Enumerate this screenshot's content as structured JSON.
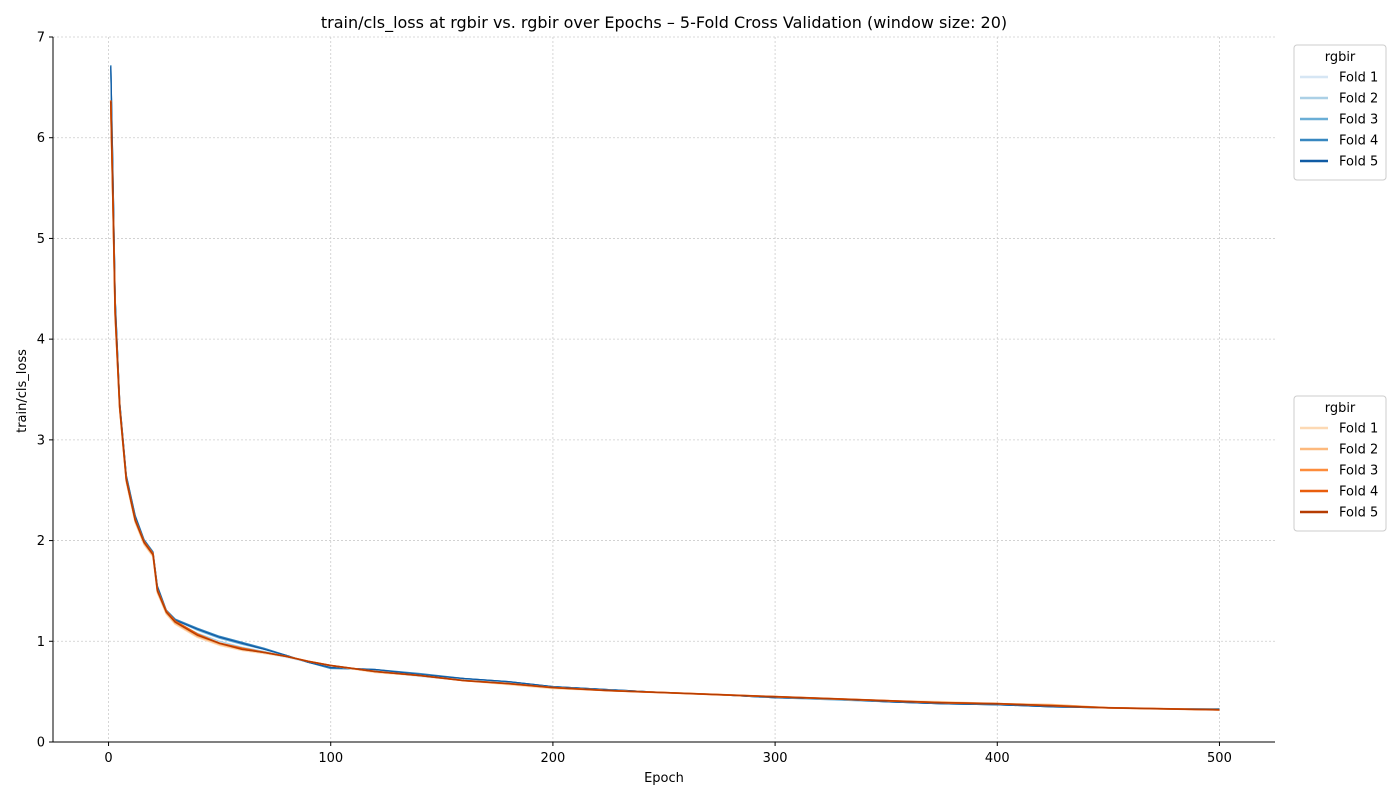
{
  "chart_data": {
    "type": "line",
    "title": "train/cls_loss at rgbir vs. rgbir over Epochs – 5-Fold Cross Validation (window size: 20)",
    "xlabel": "Epoch",
    "ylabel": "train/cls_loss",
    "xlim": [
      -25,
      525
    ],
    "ylim": [
      0,
      7
    ],
    "xticks": [
      0,
      100,
      200,
      300,
      400,
      500
    ],
    "yticks": [
      0,
      1,
      2,
      3,
      4,
      5,
      6,
      7
    ],
    "grid": true,
    "legend_groups": [
      {
        "title": "rgbir",
        "placement": "upper-right, outside",
        "entries": [
          {
            "name": "Fold 1",
            "color": "#d6e6f4"
          },
          {
            "name": "Fold 2",
            "color": "#abd0e6"
          },
          {
            "name": "Fold 3",
            "color": "#6aaed6"
          },
          {
            "name": "Fold 4",
            "color": "#3787c0"
          },
          {
            "name": "Fold 5",
            "color": "#105ba4"
          }
        ]
      },
      {
        "title": "rgbir",
        "placement": "center-right, outside",
        "entries": [
          {
            "name": "Fold 1",
            "color": "#fdd9b4"
          },
          {
            "name": "Fold 2",
            "color": "#fdb97d"
          },
          {
            "name": "Fold 3",
            "color": "#fd8c3b"
          },
          {
            "name": "Fold 4",
            "color": "#e95e0d"
          },
          {
            "name": "Fold 5",
            "color": "#b63c02"
          }
        ]
      }
    ],
    "series": [
      {
        "name": "Fold 1",
        "color": "#d6e6f4",
        "width": 1.3,
        "x": [
          1,
          2,
          3,
          5,
          8,
          12,
          16,
          20,
          22,
          26,
          30,
          40,
          50,
          60,
          70,
          80,
          90,
          100,
          120,
          140,
          160,
          180,
          200,
          225,
          250,
          275,
          300,
          325,
          350,
          375,
          400,
          425,
          450,
          475,
          500
        ],
        "y": [
          6.65,
          5.55,
          4.35,
          3.35,
          2.62,
          2.22,
          1.98,
          1.86,
          1.52,
          1.28,
          1.18,
          1.06,
          0.97,
          0.92,
          0.88,
          0.84,
          0.79,
          0.75,
          0.7,
          0.65,
          0.61,
          0.58,
          0.54,
          0.51,
          0.49,
          0.47,
          0.44,
          0.42,
          0.4,
          0.39,
          0.37,
          0.36,
          0.34,
          0.33,
          0.32
        ]
      },
      {
        "name": "Fold 2",
        "color": "#abd0e6",
        "width": 1.3,
        "x": [
          1,
          2,
          3,
          5,
          8,
          12,
          16,
          20,
          22,
          26,
          30,
          40,
          50,
          60,
          70,
          80,
          90,
          100,
          120,
          140,
          160,
          180,
          200,
          225,
          250,
          275,
          300,
          325,
          350,
          375,
          400,
          425,
          450,
          475,
          500
        ],
        "y": [
          6.68,
          5.57,
          4.37,
          3.36,
          2.63,
          2.23,
          1.99,
          1.87,
          1.53,
          1.29,
          1.19,
          1.08,
          1.0,
          0.94,
          0.9,
          0.85,
          0.79,
          0.74,
          0.71,
          0.66,
          0.62,
          0.59,
          0.55,
          0.52,
          0.49,
          0.47,
          0.45,
          0.43,
          0.4,
          0.39,
          0.37,
          0.36,
          0.34,
          0.33,
          0.32
        ]
      },
      {
        "name": "Fold 3",
        "color": "#6aaed6",
        "width": 1.3,
        "x": [
          1,
          2,
          3,
          5,
          8,
          12,
          16,
          20,
          22,
          26,
          30,
          40,
          50,
          60,
          70,
          80,
          90,
          100,
          120,
          140,
          160,
          180,
          200,
          225,
          250,
          275,
          300,
          325,
          350,
          375,
          400,
          425,
          450,
          475,
          500
        ],
        "y": [
          6.7,
          5.6,
          4.38,
          3.37,
          2.64,
          2.24,
          2.0,
          1.88,
          1.54,
          1.3,
          1.21,
          1.11,
          1.03,
          0.97,
          0.92,
          0.86,
          0.79,
          0.74,
          0.72,
          0.67,
          0.63,
          0.6,
          0.55,
          0.52,
          0.49,
          0.47,
          0.44,
          0.42,
          0.4,
          0.38,
          0.37,
          0.35,
          0.34,
          0.33,
          0.32
        ]
      },
      {
        "name": "Fold 4",
        "color": "#3787c0",
        "width": 1.3,
        "x": [
          1,
          2,
          3,
          5,
          8,
          12,
          16,
          20,
          22,
          26,
          30,
          40,
          50,
          60,
          70,
          80,
          90,
          100,
          120,
          140,
          160,
          180,
          200,
          225,
          250,
          275,
          300,
          325,
          350,
          375,
          400,
          425,
          450,
          475,
          500
        ],
        "y": [
          6.72,
          5.62,
          4.4,
          3.38,
          2.65,
          2.25,
          2.01,
          1.89,
          1.55,
          1.31,
          1.22,
          1.13,
          1.05,
          0.99,
          0.93,
          0.86,
          0.79,
          0.73,
          0.72,
          0.68,
          0.63,
          0.6,
          0.55,
          0.52,
          0.49,
          0.47,
          0.44,
          0.43,
          0.4,
          0.38,
          0.37,
          0.35,
          0.34,
          0.33,
          0.33
        ]
      },
      {
        "name": "Fold 5",
        "color": "#105ba4",
        "width": 1.3,
        "x": [
          1,
          2,
          3,
          5,
          8,
          12,
          16,
          20,
          22,
          26,
          30,
          40,
          50,
          60,
          70,
          80,
          90,
          100,
          120,
          140,
          160,
          180,
          200,
          225,
          250,
          275,
          300,
          325,
          350,
          375,
          400,
          425,
          450,
          475,
          500
        ],
        "y": [
          6.71,
          5.61,
          4.39,
          3.37,
          2.64,
          2.24,
          2.0,
          1.88,
          1.54,
          1.3,
          1.21,
          1.12,
          1.04,
          0.98,
          0.92,
          0.86,
          0.79,
          0.74,
          0.72,
          0.67,
          0.63,
          0.6,
          0.55,
          0.52,
          0.49,
          0.47,
          0.44,
          0.43,
          0.4,
          0.38,
          0.37,
          0.35,
          0.34,
          0.33,
          0.32
        ]
      },
      {
        "name": "Fold 1",
        "color": "#fdd9b4",
        "width": 1.6,
        "x": [
          1,
          2,
          3,
          5,
          8,
          12,
          16,
          20,
          22,
          26,
          30,
          40,
          50,
          60,
          70,
          80,
          90,
          100,
          120,
          140,
          160,
          180,
          200,
          225,
          250,
          275,
          300,
          325,
          350,
          375,
          400,
          425,
          450,
          475,
          500
        ],
        "y": [
          6.3,
          5.3,
          4.2,
          3.3,
          2.58,
          2.18,
          1.96,
          1.84,
          1.48,
          1.27,
          1.17,
          1.04,
          0.96,
          0.91,
          0.88,
          0.85,
          0.8,
          0.76,
          0.69,
          0.66,
          0.61,
          0.57,
          0.53,
          0.51,
          0.49,
          0.47,
          0.45,
          0.43,
          0.41,
          0.4,
          0.38,
          0.37,
          0.34,
          0.33,
          0.32
        ]
      },
      {
        "name": "Fold 2",
        "color": "#fdb97d",
        "width": 1.6,
        "x": [
          1,
          2,
          3,
          5,
          8,
          12,
          16,
          20,
          22,
          26,
          30,
          40,
          50,
          60,
          70,
          80,
          90,
          100,
          120,
          140,
          160,
          180,
          200,
          225,
          250,
          275,
          300,
          325,
          350,
          375,
          400,
          425,
          450,
          475,
          500
        ],
        "y": [
          6.32,
          5.32,
          4.22,
          3.31,
          2.59,
          2.19,
          1.97,
          1.85,
          1.49,
          1.28,
          1.18,
          1.05,
          0.97,
          0.92,
          0.89,
          0.85,
          0.8,
          0.76,
          0.7,
          0.66,
          0.61,
          0.58,
          0.54,
          0.51,
          0.49,
          0.47,
          0.45,
          0.43,
          0.41,
          0.39,
          0.38,
          0.37,
          0.34,
          0.33,
          0.32
        ]
      },
      {
        "name": "Fold 3",
        "color": "#fd8c3b",
        "width": 1.6,
        "x": [
          1,
          2,
          3,
          5,
          8,
          12,
          16,
          20,
          22,
          26,
          30,
          40,
          50,
          60,
          70,
          80,
          90,
          100,
          120,
          140,
          160,
          180,
          200,
          225,
          250,
          275,
          300,
          325,
          350,
          375,
          400,
          425,
          450,
          475,
          500
        ],
        "y": [
          6.34,
          5.34,
          4.24,
          3.32,
          2.6,
          2.2,
          1.98,
          1.86,
          1.5,
          1.29,
          1.19,
          1.06,
          0.98,
          0.92,
          0.89,
          0.85,
          0.8,
          0.76,
          0.7,
          0.66,
          0.61,
          0.58,
          0.54,
          0.51,
          0.49,
          0.47,
          0.45,
          0.43,
          0.41,
          0.39,
          0.38,
          0.36,
          0.34,
          0.33,
          0.32
        ]
      },
      {
        "name": "Fold 4",
        "color": "#e95e0d",
        "width": 1.8,
        "x": [
          1,
          2,
          3,
          5,
          8,
          12,
          16,
          20,
          22,
          26,
          30,
          40,
          50,
          60,
          70,
          80,
          90,
          100,
          120,
          140,
          160,
          180,
          200,
          225,
          250,
          275,
          300,
          325,
          350,
          375,
          400,
          425,
          450,
          475,
          500
        ],
        "y": [
          6.37,
          5.36,
          4.26,
          3.33,
          2.61,
          2.21,
          1.99,
          1.87,
          1.51,
          1.3,
          1.2,
          1.07,
          0.98,
          0.93,
          0.89,
          0.85,
          0.8,
          0.76,
          0.7,
          0.66,
          0.61,
          0.58,
          0.54,
          0.51,
          0.49,
          0.47,
          0.45,
          0.43,
          0.41,
          0.39,
          0.38,
          0.36,
          0.34,
          0.33,
          0.32
        ]
      },
      {
        "name": "Fold 5",
        "color": "#b63c02",
        "width": 1.4,
        "x": [
          1,
          2,
          3,
          5,
          8,
          12,
          16,
          20,
          22,
          26,
          30,
          40,
          50,
          60,
          70,
          80,
          90,
          100,
          120,
          140,
          160,
          180,
          200,
          225,
          250,
          275,
          300,
          325,
          350,
          375,
          400,
          425,
          450,
          475,
          500
        ],
        "y": [
          6.36,
          5.35,
          4.25,
          3.32,
          2.6,
          2.2,
          1.98,
          1.86,
          1.5,
          1.29,
          1.19,
          1.06,
          0.98,
          0.92,
          0.89,
          0.85,
          0.8,
          0.76,
          0.7,
          0.66,
          0.61,
          0.58,
          0.54,
          0.51,
          0.49,
          0.47,
          0.45,
          0.43,
          0.41,
          0.39,
          0.38,
          0.36,
          0.34,
          0.33,
          0.32
        ]
      }
    ]
  }
}
